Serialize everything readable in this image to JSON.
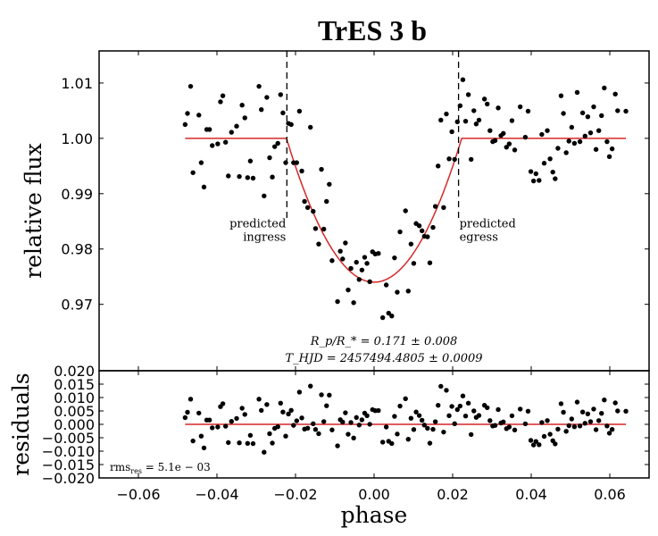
{
  "chart_data": [
    {
      "type": "scatter",
      "title": "TrES 3 b",
      "xlabel": "phase",
      "ylabel": "relative flux",
      "xlim": [
        -0.07,
        0.07
      ],
      "ylim": [
        0.958,
        1.0158
      ],
      "xticks": [
        -0.06,
        -0.04,
        -0.02,
        0.0,
        0.02,
        0.04,
        0.06
      ],
      "yticks": [
        0.97,
        0.98,
        0.99,
        1.0,
        1.01
      ],
      "ytick_labels": [
        "0.97",
        "0.98",
        "0.99",
        "1.00",
        "1.01"
      ],
      "grid": false,
      "colors": {
        "points": "#000000",
        "model": "#d62728",
        "markers": "#000000"
      },
      "model": {
        "type": "line",
        "baseline": 1.0,
        "min_flux": 0.974,
        "half_duration": 0.0223,
        "color": "#d62728"
      },
      "vlines": [
        {
          "x": -0.0222,
          "style": "dashed",
          "label_lines": [
            "predicted",
            "ingress"
          ]
        },
        {
          "x": 0.0215,
          "style": "dashed",
          "label_lines": [
            "predicted",
            "egress"
          ]
        }
      ],
      "annotations": {
        "radius_ratio": "R_p/R_* = 0.171 ± 0.008",
        "radius_ratio_parts": {
          "lhs_main": "R",
          "lhs_sub": "p",
          "slash": "/R",
          "sub2": "*",
          "rhs": " = 0.171 ± 0.008"
        },
        "mid_time": "T_HJD = 2457494.4805 ± 0.0009",
        "mid_time_parts": {
          "main": "T",
          "sub": "HJD",
          "rhs": " = 2457494.4805 ± 0.0009"
        }
      },
      "points": [
        [
          -0.0481,
          1.0025
        ],
        [
          -0.0475,
          1.0045
        ],
        [
          -0.0467,
          1.0094
        ],
        [
          -0.0461,
          0.9938
        ],
        [
          -0.0446,
          1.0042
        ],
        [
          -0.044,
          0.9956
        ],
        [
          -0.0433,
          0.9912
        ],
        [
          -0.0426,
          1.0016
        ],
        [
          -0.0419,
          1.0016
        ],
        [
          -0.0412,
          0.9987
        ],
        [
          -0.0398,
          0.999
        ],
        [
          -0.0391,
          1.0066
        ],
        [
          -0.0385,
          1.0077
        ],
        [
          -0.0378,
          0.9993
        ],
        [
          -0.0371,
          0.9932
        ],
        [
          -0.0363,
          1.0011
        ],
        [
          -0.035,
          1.0022
        ],
        [
          -0.0343,
          0.9931
        ],
        [
          -0.0336,
          1.006
        ],
        [
          -0.0329,
          1.0037
        ],
        [
          -0.0322,
          0.9929
        ],
        [
          -0.0315,
          0.9959
        ],
        [
          -0.0308,
          0.9928
        ],
        [
          -0.0293,
          1.0094
        ],
        [
          -0.0287,
          1.0052
        ],
        [
          -0.028,
          0.9896
        ],
        [
          -0.0273,
          1.0074
        ],
        [
          -0.0266,
          0.9965
        ],
        [
          -0.0259,
          0.993
        ],
        [
          -0.0253,
          0.9985
        ],
        [
          -0.0245,
          0.9991
        ],
        [
          -0.0238,
          1.0079
        ],
        [
          -0.0232,
          1.0046
        ],
        [
          -0.0225,
          0.9956
        ],
        [
          -0.0218,
          1.0027
        ],
        [
          -0.0211,
          1.0025
        ],
        [
          -0.0205,
          0.9956
        ],
        [
          -0.0197,
          0.9956
        ],
        [
          -0.019,
          1.0049
        ],
        [
          -0.0184,
          0.9941
        ],
        [
          -0.0177,
          0.9886
        ],
        [
          -0.0169,
          0.9875
        ],
        [
          -0.0162,
          1.002
        ],
        [
          -0.0155,
          0.9868
        ],
        [
          -0.0149,
          0.9837
        ],
        [
          -0.0141,
          0.9809
        ],
        [
          -0.0134,
          0.9944
        ],
        [
          -0.0128,
          0.9836
        ],
        [
          -0.0121,
          0.9886
        ],
        [
          -0.0114,
          0.9917
        ],
        [
          -0.0107,
          0.9779
        ],
        [
          -0.0093,
          0.9705
        ],
        [
          -0.0086,
          0.9796
        ],
        [
          -0.008,
          0.9782
        ],
        [
          -0.0073,
          0.9811
        ],
        [
          -0.0066,
          0.9726
        ],
        [
          -0.0059,
          0.9765
        ],
        [
          -0.0052,
          0.9703
        ],
        [
          -0.0045,
          0.9776
        ],
        [
          -0.0038,
          0.9745
        ],
        [
          -0.0031,
          0.9762
        ],
        [
          -0.0024,
          0.9785
        ],
        [
          -0.0018,
          0.9774
        ],
        [
          -0.0011,
          0.9741
        ],
        [
          -0.0004,
          0.9795
        ],
        [
          0.0003,
          0.9791
        ],
        [
          0.0011,
          0.9792
        ],
        [
          0.0022,
          0.9676
        ],
        [
          0.0037,
          0.9684
        ],
        [
          0.0045,
          0.9679
        ],
        [
          0.0031,
          0.9735
        ],
        [
          0.0052,
          0.9784
        ],
        [
          0.0059,
          0.9722
        ],
        [
          0.0066,
          0.9831
        ],
        [
          0.008,
          0.9869
        ],
        [
          0.0087,
          0.9724
        ],
        [
          0.0094,
          0.9809
        ],
        [
          0.0101,
          0.9774
        ],
        [
          0.0107,
          0.9846
        ],
        [
          0.0115,
          0.9842
        ],
        [
          0.0122,
          0.9833
        ],
        [
          0.0128,
          0.9823
        ],
        [
          0.0136,
          0.9822
        ],
        [
          0.0142,
          0.9775
        ],
        [
          0.015,
          0.9839
        ],
        [
          0.0156,
          0.9877
        ],
        [
          0.0163,
          0.995
        ],
        [
          0.017,
          1.0033
        ],
        [
          0.0177,
          0.9875
        ],
        [
          0.0184,
          1.0044
        ],
        [
          0.0191,
          0.9963
        ],
        [
          0.0205,
          0.9962
        ],
        [
          0.0198,
          1.0012
        ],
        [
          0.0212,
          1.003
        ],
        [
          0.0219,
          1.0059
        ],
        [
          0.0226,
          1.0106
        ],
        [
          0.0233,
          1.0031
        ],
        [
          0.024,
          1.0079
        ],
        [
          0.0247,
          0.9962
        ],
        [
          0.0254,
          1.005
        ],
        [
          0.026,
          1.0026
        ],
        [
          0.0267,
          1.0033
        ],
        [
          0.0281,
          1.0071
        ],
        [
          0.0288,
          1.0062
        ],
        [
          0.0295,
          1.0014
        ],
        [
          0.0302,
          0.9994
        ],
        [
          0.0308,
          0.9996
        ],
        [
          0.0316,
          1.0055
        ],
        [
          0.0323,
          1.0005
        ],
        [
          0.0329,
          1.0009
        ],
        [
          0.0337,
          0.9984
        ],
        [
          0.0344,
          0.999
        ],
        [
          0.0351,
          1.0032
        ],
        [
          0.0358,
          0.9979
        ],
        [
          0.0372,
          1.0057
        ],
        [
          0.0385,
          1.0002
        ],
        [
          0.0392,
          1.0049
        ],
        [
          0.0399,
          0.994
        ],
        [
          0.0406,
          0.9923
        ],
        [
          0.0412,
          0.9936
        ],
        [
          0.042,
          0.9924
        ],
        [
          0.0427,
          1.0007
        ],
        [
          0.0433,
          0.9955
        ],
        [
          0.0441,
          1.0014
        ],
        [
          0.0448,
          0.9963
        ],
        [
          0.0455,
          0.9939
        ],
        [
          0.0461,
          0.9927
        ],
        [
          0.0468,
          0.9982
        ],
        [
          0.0476,
          1.0077
        ],
        [
          0.0482,
          1.0045
        ],
        [
          0.0489,
          0.9974
        ],
        [
          0.0496,
          0.9995
        ],
        [
          0.0503,
          1.002
        ],
        [
          0.051,
          0.9991
        ],
        [
          0.0517,
          1.0083
        ],
        [
          0.0524,
          0.9994
        ],
        [
          0.0531,
          1.0046
        ],
        [
          0.0537,
          1.0004
        ],
        [
          0.0544,
          1.0039
        ],
        [
          0.0551,
          1.001
        ],
        [
          0.0559,
          1.0057
        ],
        [
          0.0565,
          0.998
        ],
        [
          0.0572,
          1.0014
        ],
        [
          0.0579,
          1.0041
        ],
        [
          0.0586,
          1.0091
        ],
        [
          0.0593,
          0.9994
        ],
        [
          0.0599,
          0.9967
        ],
        [
          0.0606,
          0.9981
        ],
        [
          0.0614,
          1.008
        ],
        [
          0.062,
          1.005
        ],
        [
          0.0641,
          1.0049
        ]
      ]
    },
    {
      "type": "scatter",
      "ylabel": "residuals",
      "xlabel": "phase",
      "xlim": [
        -0.07,
        0.07
      ],
      "ylim": [
        -0.02,
        0.02
      ],
      "xticks": [
        -0.06,
        -0.04,
        -0.02,
        0.0,
        0.02,
        0.04,
        0.06
      ],
      "xtick_labels": [
        "−0.06",
        "−0.04",
        "−0.02",
        "0.00",
        "0.02",
        "0.04",
        "0.06"
      ],
      "yticks": [
        -0.02,
        -0.015,
        -0.01,
        -0.005,
        0.0,
        0.005,
        0.01,
        0.015,
        0.02
      ],
      "ytick_labels": [
        "−0.020",
        "−0.015",
        "−0.010",
        "−0.005",
        "0.000",
        "0.005",
        "0.010",
        "0.015",
        "0.020"
      ],
      "zero_line_color": "#d62728",
      "residuals_from": "points minus model of the upper panel",
      "annotation": {
        "main": "rms",
        "sub": "res",
        "rhs": " = 5.1e − 03"
      }
    }
  ]
}
